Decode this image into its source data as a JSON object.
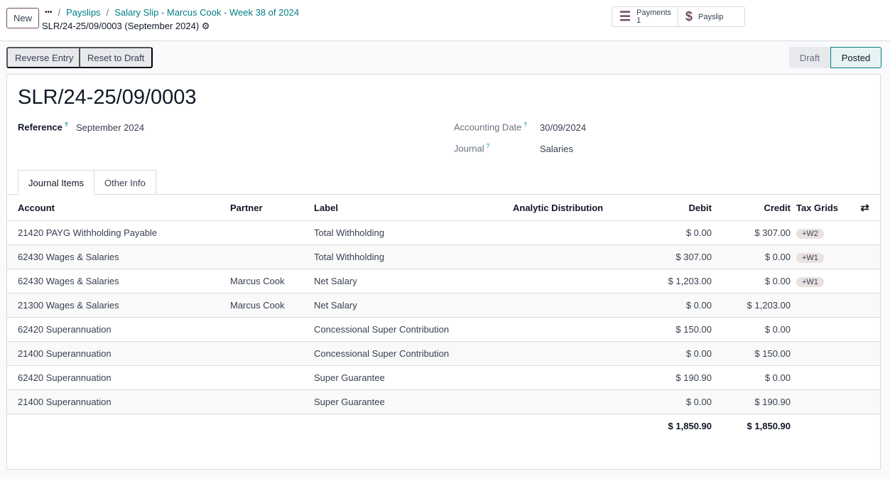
{
  "header": {
    "new_label": "New",
    "more_label": "•••",
    "breadcrumb": [
      "Payslips",
      "Salary Slip - Marcus Cook - Week 38 of 2024"
    ],
    "record": "SLR/24-25/09/0003 (September 2024)"
  },
  "smart_buttons": {
    "payments_label": "Payments",
    "payments_count": "1",
    "payslip_label": "Payslip"
  },
  "actions": {
    "reverse": "Reverse Entry",
    "reset": "Reset to Draft"
  },
  "status": {
    "draft": "Draft",
    "posted": "Posted",
    "current": "Posted"
  },
  "form": {
    "title": "SLR/24-25/09/0003",
    "reference_label": "Reference",
    "reference": "September 2024",
    "date_label": "Accounting Date",
    "date": "30/09/2024",
    "journal_label": "Journal",
    "journal": "Salaries",
    "help": "?"
  },
  "tabs": [
    "Journal Items",
    "Other Info"
  ],
  "table": {
    "headers": [
      "Account",
      "Partner",
      "Label",
      "Analytic Distribution",
      "Debit",
      "Credit",
      "Tax Grids"
    ],
    "rows": [
      {
        "account": "21420 PAYG Withholding Payable",
        "partner": "",
        "label": "Total Withholding",
        "debit": "$ 0.00",
        "credit": "$ 307.00",
        "tax": "+W2"
      },
      {
        "account": "62430 Wages & Salaries",
        "partner": "",
        "label": "Total Withholding",
        "debit": "$ 307.00",
        "credit": "$ 0.00",
        "tax": "+W1"
      },
      {
        "account": "62430 Wages & Salaries",
        "partner": "Marcus Cook",
        "label": "Net Salary",
        "debit": "$ 1,203.00",
        "credit": "$ 0.00",
        "tax": "+W1"
      },
      {
        "account": "21300 Wages & Salaries",
        "partner": "Marcus Cook",
        "label": "Net Salary",
        "debit": "$ 0.00",
        "credit": "$ 1,203.00",
        "tax": ""
      },
      {
        "account": "62420 Superannuation",
        "partner": "",
        "label": "Concessional Super Contribution",
        "debit": "$ 150.00",
        "credit": "$ 0.00",
        "tax": ""
      },
      {
        "account": "21400 Superannuation",
        "partner": "",
        "label": "Concessional Super Contribution",
        "debit": "$ 0.00",
        "credit": "$ 150.00",
        "tax": ""
      },
      {
        "account": "62420 Superannuation",
        "partner": "",
        "label": "Super Guarantee",
        "debit": "$ 190.90",
        "credit": "$ 0.00",
        "tax": ""
      },
      {
        "account": "21400 Superannuation",
        "partner": "",
        "label": "Super Guarantee",
        "debit": "$ 0.00",
        "credit": "$ 190.90",
        "tax": ""
      }
    ],
    "total_debit": "$ 1,850.90",
    "total_credit": "$ 1,850.90"
  }
}
